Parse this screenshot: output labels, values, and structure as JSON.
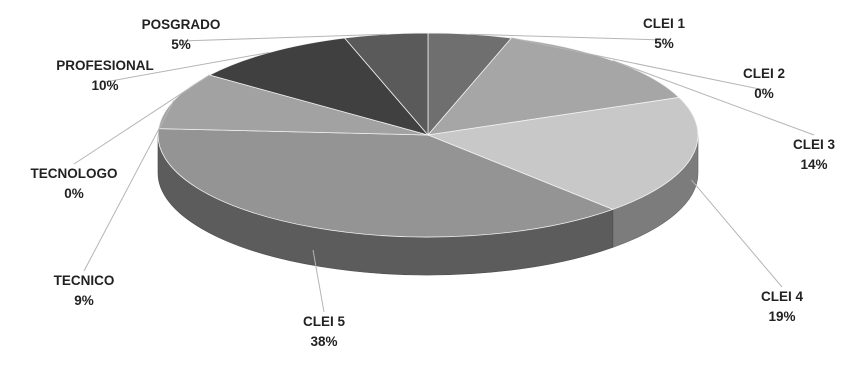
{
  "chart_data": {
    "type": "pie",
    "title": "",
    "slices": [
      {
        "label": "CLEI 1",
        "value_label": "5%",
        "value": 5,
        "color": "#6f6f6f"
      },
      {
        "label": "CLEI 2",
        "value_label": "0%",
        "value": 0,
        "color": "#8c8c8c"
      },
      {
        "label": "CLEI 3",
        "value_label": "14%",
        "value": 14,
        "color": "#a6a6a6"
      },
      {
        "label": "CLEI 4",
        "value_label": "19%",
        "value": 19,
        "color": "#c8c8c8"
      },
      {
        "label": "CLEI 5",
        "value_label": "38%",
        "value": 38,
        "color": "#949494"
      },
      {
        "label": "TECNICO",
        "value_label": "9%",
        "value": 9,
        "color": "#a2a2a2"
      },
      {
        "label": "TECNOLOGO",
        "value_label": "0%",
        "value": 0,
        "color": "#b0b0b0"
      },
      {
        "label": "PROFESIONAL",
        "value_label": "10%",
        "value": 10,
        "color": "#404040"
      },
      {
        "label": "POSGRADO",
        "value_label": "5%",
        "value": 5,
        "color": "#5a5a5a"
      }
    ]
  }
}
